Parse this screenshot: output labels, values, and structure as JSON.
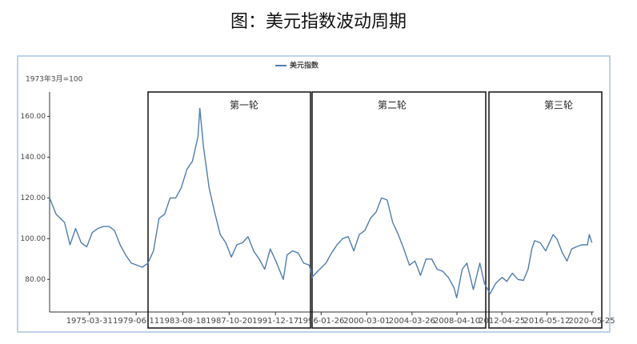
{
  "chart_data": {
    "type": "line",
    "title": "图：美元指数波动周期",
    "y_label": "1973年3月=100",
    "legend": "top",
    "x": [
      "1971-09-01",
      "1972-04-01",
      "1973-01-01",
      "1973-07-01",
      "1974-01-01",
      "1974-07-01",
      "1975-01-01",
      "1975-07-01",
      "1976-01-01",
      "1976-07-01",
      "1977-01-01",
      "1977-07-01",
      "1978-01-01",
      "1978-07-01",
      "1979-01-01",
      "1979-07-01",
      "1980-01-01",
      "1980-07-01",
      "1981-01-01",
      "1981-07-01",
      "1982-01-01",
      "1982-07-01",
      "1983-01-01",
      "1983-07-01",
      "1984-01-01",
      "1984-07-01",
      "1985-01-01",
      "1985-03-01",
      "1985-07-01",
      "1986-01-01",
      "1986-07-01",
      "1987-01-01",
      "1987-07-01",
      "1988-01-01",
      "1988-07-01",
      "1989-01-01",
      "1989-07-01",
      "1990-01-01",
      "1990-07-01",
      "1991-01-01",
      "1991-07-01",
      "1992-01-01",
      "1992-09-01",
      "1993-01-01",
      "1993-07-01",
      "1994-01-01",
      "1994-07-01",
      "1995-01-01",
      "1995-04-01",
      "1995-10-01",
      "1996-07-01",
      "1997-01-01",
      "1997-07-01",
      "1998-01-01",
      "1998-07-01",
      "1999-01-01",
      "1999-07-01",
      "2000-01-01",
      "2000-07-01",
      "2001-01-01",
      "2001-07-01",
      "2002-01-01",
      "2002-07-01",
      "2003-01-01",
      "2003-07-01",
      "2004-01-01",
      "2004-07-01",
      "2005-01-01",
      "2005-07-01",
      "2006-01-01",
      "2006-07-01",
      "2007-01-01",
      "2007-07-01",
      "2008-01-01",
      "2008-04-01",
      "2008-10-01",
      "2009-03-01",
      "2009-10-01",
      "2010-05-01",
      "2010-10-01",
      "2011-04-01",
      "2011-10-01",
      "2012-05-01",
      "2012-10-01",
      "2013-04-01",
      "2013-10-01",
      "2014-04-01",
      "2014-09-01",
      "2015-01-01",
      "2015-04-01",
      "2015-10-01",
      "2016-04-01",
      "2016-12-01",
      "2017-04-01",
      "2017-10-01",
      "2018-03-01",
      "2018-08-01",
      "2019-01-01",
      "2019-07-01",
      "2020-01-01",
      "2020-03-01",
      "2020-05-25"
    ],
    "series": [
      {
        "name": "美元指数",
        "color": "#4f7db0",
        "values": [
          120,
          112,
          108,
          97,
          105,
          98,
          96,
          103,
          105,
          106,
          106,
          104,
          97,
          92,
          88,
          87,
          86,
          88,
          94,
          110,
          112,
          120,
          120,
          125,
          134,
          138,
          150,
          164,
          145,
          125,
          113,
          102,
          98,
          91,
          97,
          98,
          101,
          94,
          90,
          85,
          95,
          89,
          80,
          92,
          94,
          93,
          88,
          87,
          81,
          84,
          88,
          93,
          97,
          100,
          101,
          94,
          102,
          104,
          110,
          113,
          120,
          119,
          108,
          102,
          95,
          87,
          89,
          82,
          90,
          90,
          85,
          84,
          81,
          76,
          71,
          85,
          88,
          75,
          88,
          78,
          73,
          78,
          81,
          79,
          83,
          80,
          79.5,
          85,
          95,
          99,
          98,
          94,
          102,
          100,
          93,
          89,
          95,
          96,
          97,
          97,
          102,
          98
        ]
      }
    ],
    "xlim": [
      "1971-09-01",
      "2020-07-01"
    ],
    "xticks": [
      "1975-03-31",
      "1979-06-11",
      "1983-08-18",
      "1987-10-20",
      "1991-12-17",
      "1996-01-26",
      "2000-03-01",
      "2004-03-26",
      "2008-04-10",
      "2012-04-25",
      "2016-05-12",
      "2020-05-25"
    ],
    "ylim": [
      64,
      172
    ],
    "yticks": [
      {
        "value": 80,
        "label": "80.00"
      },
      {
        "value": 100,
        "label": "100.00"
      },
      {
        "value": 120,
        "label": "120.00"
      },
      {
        "value": 140,
        "label": "140.00"
      },
      {
        "value": 160,
        "label": "160.00"
      }
    ],
    "annotations": [
      "第一轮",
      "第二轮",
      "第三轮"
    ]
  }
}
